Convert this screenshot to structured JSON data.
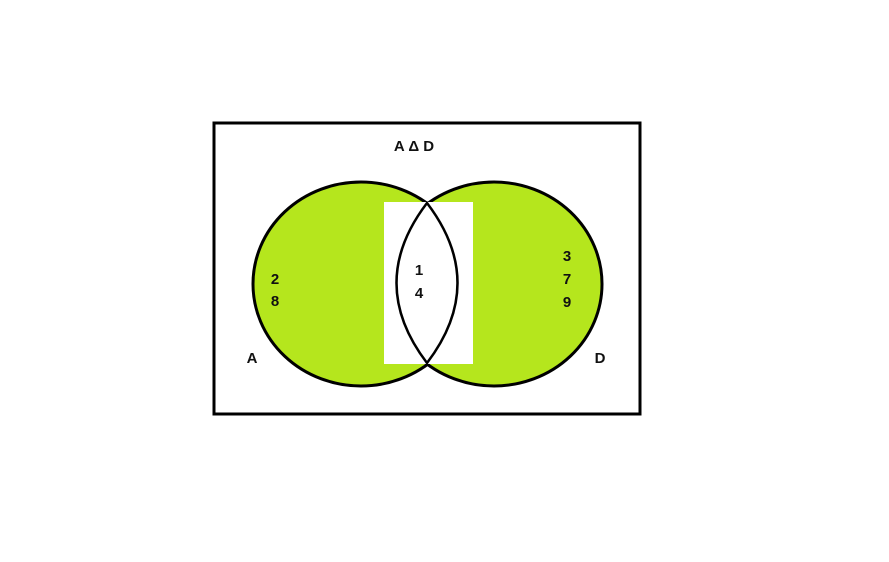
{
  "title": "A Δ D",
  "sets": [
    {
      "label": "A",
      "only_elements": [
        "2",
        "8"
      ]
    },
    {
      "label": "D",
      "only_elements": [
        "3",
        "7",
        "9"
      ]
    }
  ],
  "intersection": {
    "elements": [
      "1",
      "4"
    ]
  },
  "colors": {
    "shaded": "#b5e61d",
    "outline": "#000000",
    "background": "#ffffff"
  }
}
